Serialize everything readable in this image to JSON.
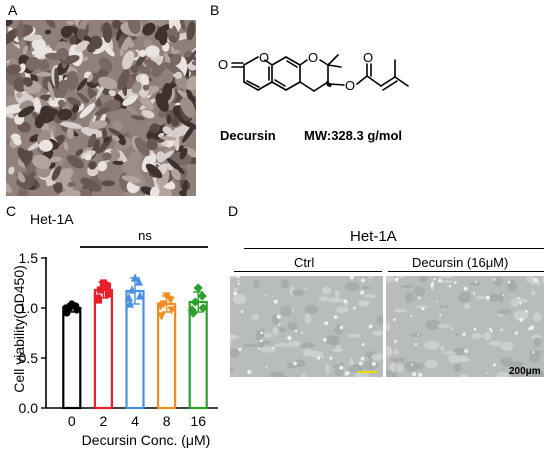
{
  "panels": {
    "a": "A",
    "b": "B",
    "c": "C",
    "d": "D"
  },
  "structure": {
    "name": "Decursin",
    "mw": "MW:328.3 g/mol",
    "atoms": {
      "o_carbonyl": "O",
      "o_lactone": "O",
      "o_pyran": "O",
      "o_ester": "O",
      "o_ester_carbonyl": "O"
    }
  },
  "chart_data": {
    "type": "bar",
    "title": "Het-1A",
    "xlabel": "Decursin Conc. (μM)",
    "ylabel": "Cell viability(OD450)",
    "categories": [
      "0",
      "2",
      "4",
      "8",
      "16"
    ],
    "values": [
      1.0,
      1.18,
      1.17,
      1.04,
      1.06
    ],
    "errors": [
      0.04,
      0.08,
      0.13,
      0.08,
      0.1
    ],
    "points": [
      [
        0.95,
        0.98,
        1.0,
        1.02,
        1.04,
        1.0
      ],
      [
        1.08,
        1.14,
        1.18,
        1.22,
        1.25,
        1.1
      ],
      [
        1.04,
        1.12,
        1.18,
        1.26,
        1.3,
        1.1
      ],
      [
        0.92,
        0.98,
        1.04,
        1.08,
        1.12,
        1.02
      ],
      [
        0.95,
        1.0,
        1.06,
        1.12,
        1.2,
        0.98
      ]
    ],
    "colors": [
      "#000000",
      "#e8202a",
      "#4a90e2",
      "#f28c1e",
      "#2ca02c"
    ],
    "markers": [
      "circle",
      "square",
      "triangle",
      "triangle-down",
      "diamond"
    ],
    "yticks": [
      "0.0",
      "0.5",
      "1.0",
      "1.5"
    ],
    "ylim": [
      0,
      1.5
    ],
    "annotation": "ns"
  },
  "micrographs": {
    "group": "Het-1A",
    "left_label": "Ctrl",
    "right_label": "Decursin (16μM)",
    "scale_bar": "200μm"
  }
}
